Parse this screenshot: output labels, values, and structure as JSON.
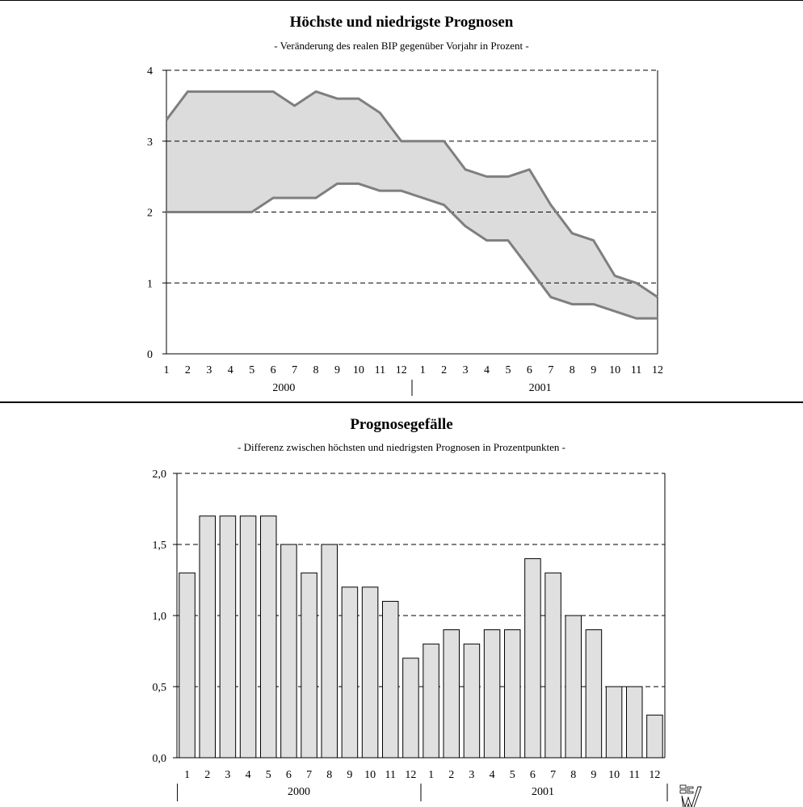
{
  "chart_data": [
    {
      "type": "area",
      "title": "Höchste und niedrigste Prognosen",
      "subtitle": "- Veränderung des realen BIP gegenüber Vorjahr in Prozent -",
      "categories": [
        "1",
        "2",
        "3",
        "4",
        "5",
        "6",
        "7",
        "8",
        "9",
        "10",
        "11",
        "12",
        "1",
        "2",
        "3",
        "4",
        "5",
        "6",
        "7",
        "8",
        "9",
        "10",
        "11",
        "12"
      ],
      "year_groups": [
        {
          "label": "2000",
          "start": 0,
          "end": 11
        },
        {
          "label": "2001",
          "start": 12,
          "end": 23
        }
      ],
      "series": [
        {
          "values": [
            3.3,
            3.7,
            3.7,
            3.7,
            3.7,
            3.7,
            3.5,
            3.7,
            3.6,
            3.6,
            3.4,
            3.0,
            3.0,
            3.0,
            2.6,
            2.5,
            2.5,
            2.6,
            2.1,
            1.7,
            1.6,
            1.1,
            1.0,
            0.8
          ]
        },
        {
          "values": [
            2.0,
            2.0,
            2.0,
            2.0,
            2.0,
            2.2,
            2.2,
            2.2,
            2.4,
            2.4,
            2.3,
            2.3,
            2.2,
            2.1,
            1.8,
            1.6,
            1.6,
            1.2,
            0.8,
            0.7,
            0.7,
            0.6,
            0.5,
            0.5
          ]
        }
      ],
      "ylim": [
        0,
        4
      ],
      "yticks": [
        "0",
        "1",
        "2",
        "3",
        "4"
      ],
      "grid": true,
      "colors": {
        "fill": "#dcdcdc",
        "line": "#7f7f7f"
      }
    },
    {
      "type": "bar",
      "title": "Prognosegefälle",
      "subtitle": "- Differenz zwischen höchsten und niedrigsten Prognosen in Prozentpunkten -",
      "categories": [
        "1",
        "2",
        "3",
        "4",
        "5",
        "6",
        "7",
        "8",
        "9",
        "10",
        "11",
        "12",
        "1",
        "2",
        "3",
        "4",
        "5",
        "6",
        "7",
        "8",
        "9",
        "10",
        "11",
        "12"
      ],
      "year_groups": [
        {
          "label": "2000",
          "start": 0,
          "end": 11
        },
        {
          "label": "2001",
          "start": 12,
          "end": 23
        }
      ],
      "values": [
        1.3,
        1.7,
        1.7,
        1.7,
        1.7,
        1.5,
        1.3,
        1.5,
        1.2,
        1.2,
        1.1,
        0.7,
        0.8,
        0.9,
        0.8,
        0.9,
        0.9,
        1.4,
        1.3,
        1.0,
        0.9,
        0.5,
        0.5,
        0.3
      ],
      "ylim": [
        0,
        2
      ],
      "yticks": [
        "0,0",
        "0,5",
        "1,0",
        "1,5",
        "2,0"
      ],
      "grid": true,
      "colors": {
        "bar": "#e0e0e0",
        "stroke": "#000000"
      }
    }
  ],
  "logo": {
    "icon": "iw-logo-icon"
  }
}
